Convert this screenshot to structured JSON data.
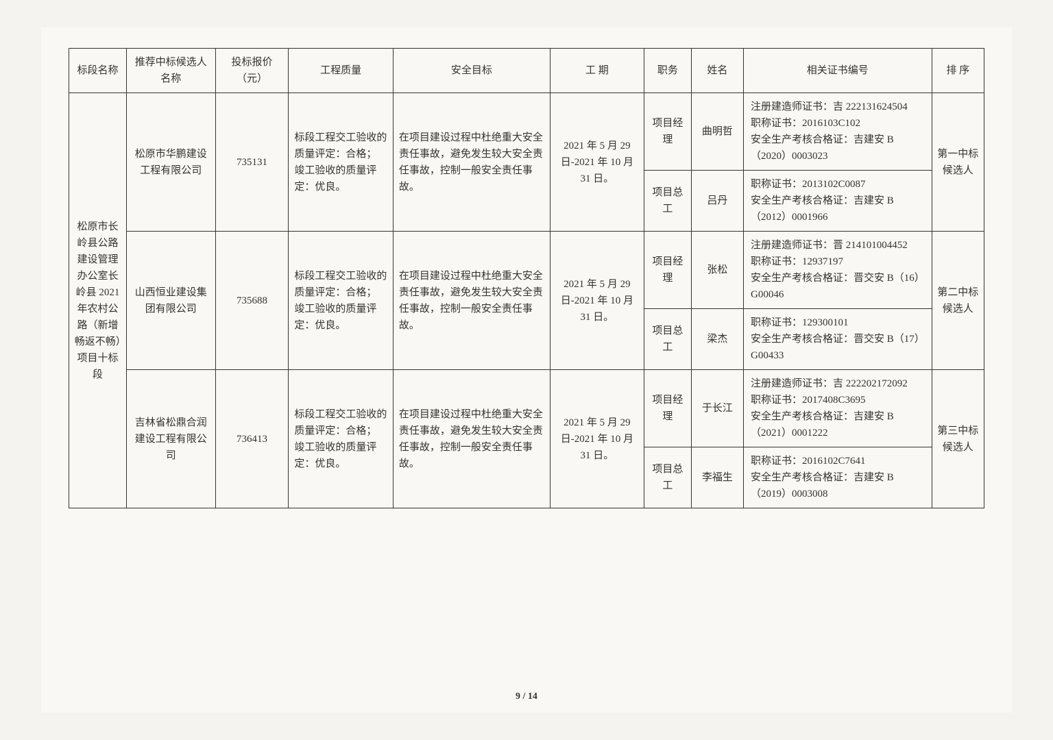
{
  "page_number": "9 / 14",
  "columns": {
    "section": "标段名称",
    "company": "推荐中标候选人名称",
    "price": "投标报价（元）",
    "quality": "工程质量",
    "safety": "安全目标",
    "period": "工 期",
    "role": "职务",
    "name": "姓名",
    "cert": "相关证书编号",
    "rank": "排 序"
  },
  "section_name": "松原市长岭县公路建设管理办公室长岭县 2021 年农村公路（新增畅返不畅）项目十标段",
  "bidders": [
    {
      "company": "松原市华鹏建设工程有限公司",
      "price": "735131",
      "quality": "标段工程交工验收的质量评定：合格；\n竣工验收的质量评定：优良。",
      "safety": "在项目建设过程中杜绝重大安全责任事故，避免发生较大安全责任事故，控制一般安全责任事故。",
      "period": "2021 年 5 月 29 日-2021 年 10 月 31 日。",
      "rank": "第一中标候选人",
      "people": [
        {
          "role": "项目经理",
          "name": "曲明哲",
          "cert": "注册建造师证书：吉 222131624504\n职称证书：2016103C102\n安全生产考核合格证：吉建安 B（2020）0003023"
        },
        {
          "role": "项目总工",
          "name": "吕丹",
          "cert": "职称证书：2013102C0087\n安全生产考核合格证：吉建安 B（2012）0001966"
        }
      ]
    },
    {
      "company": "山西恒业建设集团有限公司",
      "price": "735688",
      "quality": "标段工程交工验收的质量评定：合格；\n竣工验收的质量评定：优良。",
      "safety": "在项目建设过程中杜绝重大安全责任事故，避免发生较大安全责任事故，控制一般安全责任事故。",
      "period": "2021 年 5 月 29 日-2021 年 10 月 31 日。",
      "rank": "第二中标候选人",
      "people": [
        {
          "role": "项目经理",
          "name": "张松",
          "cert": "注册建造师证书：晋 214101004452\n职称证书：12937197\n安全生产考核合格证：晋交安 B（16）G00046"
        },
        {
          "role": "项目总工",
          "name": "梁杰",
          "cert": "职称证书：129300101\n安全生产考核合格证：晋交安 B（17）G00433"
        }
      ]
    },
    {
      "company": "吉林省松鼎合润建设工程有限公司",
      "price": "736413",
      "quality": "标段工程交工验收的质量评定：合格；\n竣工验收的质量评定：优良。",
      "safety": "在项目建设过程中杜绝重大安全责任事故，避免发生较大安全责任事故，控制一般安全责任事故。",
      "period": "2021 年 5 月 29 日-2021 年 10 月 31 日。",
      "rank": "第三中标候选人",
      "people": [
        {
          "role": "项目经理",
          "name": "于长江",
          "cert": "注册建造师证书：吉 222202172092\n职称证书：2017408C3695\n安全生产考核合格证：吉建安 B（2021）0001222"
        },
        {
          "role": "项目总工",
          "name": "李福生",
          "cert": "职称证书：2016102C7641\n安全生产考核合格证：吉建安 B（2019）0003008"
        }
      ]
    }
  ],
  "style": {
    "background_color": "#faf8f4",
    "border_color": "#333333",
    "text_color": "#333333",
    "font_family": "SimSun",
    "base_fontsize": 15,
    "line_height": 1.6
  }
}
